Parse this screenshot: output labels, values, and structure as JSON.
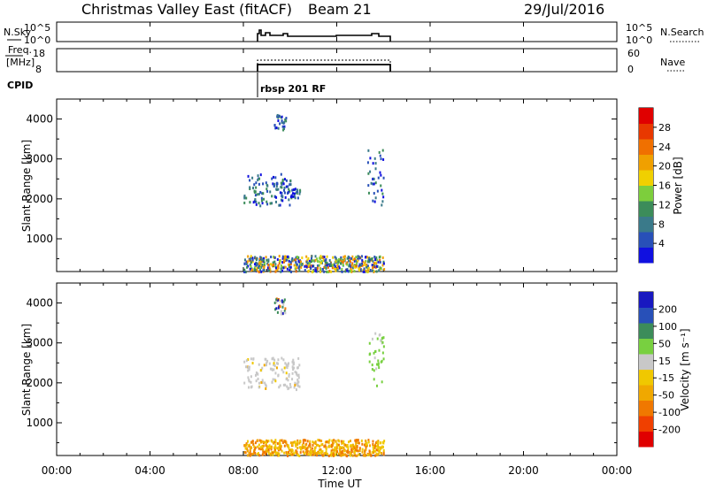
{
  "header": {
    "title": "Christmas Valley East (fitACF)",
    "beam": "Beam 21",
    "date": "29/Jul/2016"
  },
  "params_panel": {
    "nsky_label": "N.Sky",
    "nsky_ticks": [
      "10^5",
      "10^0"
    ],
    "nsearch_label": "N.Search",
    "freq_label_1": "Freq.",
    "freq_label_2": "[MHz]",
    "freq_ticks": [
      "18",
      "8"
    ],
    "nave_ticks": [
      "60",
      "0"
    ],
    "nave_label": "Nave",
    "cpid_label": "CPID",
    "cpid_name": "rbsp 201 RF"
  },
  "time_axis": {
    "label": "Time UT",
    "ticks": [
      "00:00",
      "04:00",
      "08:00",
      "12:00",
      "16:00",
      "20:00",
      "00:00"
    ]
  },
  "colors": {
    "power_scale": [
      "#1010e0",
      "#2850b8",
      "#3a7a8a",
      "#3c8c5a",
      "#7dce3c",
      "#f0d000",
      "#f0a000",
      "#f07000",
      "#e83800",
      "#e00000"
    ],
    "velocity_scale": [
      "#e00000",
      "#f04000",
      "#f07800",
      "#f0a800",
      "#f0c800",
      "#c8c8c8",
      "#78d040",
      "#3c8c5a",
      "#2850b8",
      "#1818c0"
    ]
  },
  "chart_data": [
    {
      "type": "heatmap",
      "title": "Power",
      "xlabel": "Time UT",
      "ylabel": "Slant Range [km]",
      "xlim": [
        0,
        24
      ],
      "ylim": [
        180,
        4500
      ],
      "yticks": [
        "1000",
        "2000",
        "3000",
        "4000"
      ],
      "colorbar": {
        "label": "Power [dB]",
        "range": [
          0,
          32
        ],
        "ticks": [
          "4",
          "8",
          "12",
          "16",
          "20",
          "24",
          "28"
        ]
      },
      "clusters": [
        {
          "t": [
            8.0,
            10.0
          ],
          "r": [
            1850,
            2650
          ],
          "value": "4-16 dB"
        },
        {
          "t": [
            10.0,
            10.4
          ],
          "r": [
            2050,
            2300
          ],
          "value": "4-16 dB"
        },
        {
          "t": [
            13.3,
            14.0
          ],
          "r": [
            1850,
            3300
          ],
          "value": "4-12 dB"
        },
        {
          "t": [
            9.3,
            9.8
          ],
          "r": [
            3750,
            4150
          ],
          "value": "4-8 dB"
        },
        {
          "t": [
            8.0,
            14.0
          ],
          "r": [
            200,
            600
          ],
          "value": "4-24 dB"
        }
      ]
    },
    {
      "type": "heatmap",
      "title": "Velocity",
      "xlabel": "Time UT",
      "ylabel": "Slant Range [km]",
      "xlim": [
        0,
        24
      ],
      "ylim": [
        180,
        4500
      ],
      "yticks": [
        "1000",
        "2000",
        "3000",
        "4000"
      ],
      "colorbar": {
        "label": "Velocity [m s⁻¹]",
        "range": [
          -250,
          250
        ],
        "ticks": [
          "-200",
          "-100",
          "-50",
          "-15",
          "15",
          "50",
          "100",
          "200"
        ]
      },
      "clusters": [
        {
          "t": [
            8.0,
            10.4
          ],
          "r": [
            1850,
            2650
          ],
          "value": "-15 to 15 m/s"
        },
        {
          "t": [
            13.3,
            14.0
          ],
          "r": [
            1850,
            3300
          ],
          "value": "15 to 100 m/s"
        },
        {
          "t": [
            9.3,
            9.8
          ],
          "r": [
            3750,
            4150
          ],
          "value": "-100 to 100 m/s"
        },
        {
          "t": [
            8.0,
            14.0
          ],
          "r": [
            200,
            600
          ],
          "value": "-100 to -15 m/s"
        }
      ]
    }
  ]
}
